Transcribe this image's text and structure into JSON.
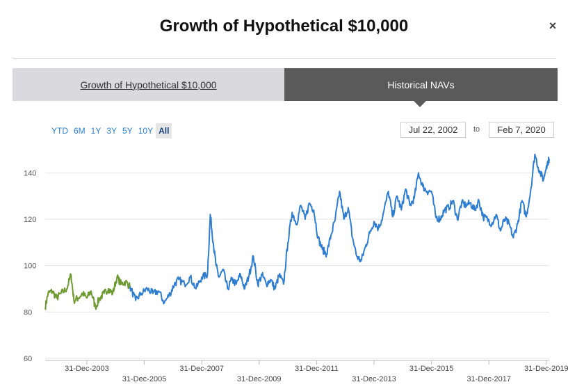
{
  "modal": {
    "title": "Growth of Hypothetical $10,000",
    "close_label": "×"
  },
  "tabs": [
    {
      "label": "Growth of Hypothetical $10,000"
    },
    {
      "label": "Historical NAVs"
    }
  ],
  "ranges": [
    "YTD",
    "6M",
    "1Y",
    "3Y",
    "5Y",
    "10Y",
    "All"
  ],
  "active_range": "All",
  "date_range": {
    "from": "Jul 22, 2002",
    "separator": "to",
    "to": "Feb 7, 2020"
  },
  "colors": {
    "accent": "#2a7fd4",
    "series_green": "#6e9a32",
    "series_blue": "#2e7dd1",
    "tab_dark": "#5a5a5a"
  },
  "chart_data": {
    "type": "line",
    "title": "",
    "xlabel": "",
    "ylabel": "",
    "ylim": [
      60,
      150
    ],
    "xlim": [
      2002.55,
      2020.1
    ],
    "yticks": [
      60,
      80,
      100,
      120,
      140
    ],
    "xtick_labels": [
      {
        "label": "31-Dec-2003",
        "x": 2004.0,
        "row": 1
      },
      {
        "label": "31-Dec-2005",
        "x": 2006.0,
        "row": 2
      },
      {
        "label": "31-Dec-2007",
        "x": 2008.0,
        "row": 1
      },
      {
        "label": "31-Dec-2009",
        "x": 2010.0,
        "row": 2
      },
      {
        "label": "31-Dec-2011",
        "x": 2012.0,
        "row": 1
      },
      {
        "label": "31-Dec-2013",
        "x": 2014.0,
        "row": 2
      },
      {
        "label": "31-Dec-2015",
        "x": 2016.0,
        "row": 1
      },
      {
        "label": "31-Dec-2017",
        "x": 2018.0,
        "row": 2
      },
      {
        "label": "31-Dec-2019",
        "x": 2020.0,
        "row": 1
      }
    ],
    "series": [
      {
        "name": "highlighted-period",
        "color": "#6e9a32",
        "x": [
          2002.55,
          2002.65,
          2002.8,
          2002.95,
          2003.1,
          2003.3,
          2003.45,
          2003.55,
          2003.7,
          2003.85,
          2004.0,
          2004.15,
          2004.3,
          2004.45,
          2004.6,
          2004.75,
          2004.9,
          2005.05,
          2005.2,
          2005.35,
          2005.5
        ],
        "values": [
          82,
          88,
          89,
          86,
          88,
          90,
          96,
          85,
          86,
          88,
          86,
          89,
          82,
          86,
          88,
          90,
          88,
          95,
          92,
          93,
          91
        ]
      },
      {
        "name": "nav",
        "color": "#2e7dd1",
        "x": [
          2005.5,
          2005.7,
          2005.9,
          2006.1,
          2006.3,
          2006.5,
          2006.7,
          2006.9,
          2007.05,
          2007.2,
          2007.4,
          2007.6,
          2007.8,
          2008.0,
          2008.2,
          2008.3,
          2008.4,
          2008.5,
          2008.6,
          2008.75,
          2008.9,
          2009.05,
          2009.2,
          2009.35,
          2009.5,
          2009.65,
          2009.8,
          2009.95,
          2010.1,
          2010.25,
          2010.4,
          2010.55,
          2010.7,
          2010.85,
          2011.0,
          2011.15,
          2011.3,
          2011.45,
          2011.6,
          2011.75,
          2011.9,
          2012.05,
          2012.2,
          2012.35,
          2012.5,
          2012.65,
          2012.8,
          2012.95,
          2013.1,
          2013.25,
          2013.4,
          2013.55,
          2013.7,
          2013.85,
          2014.0,
          2014.15,
          2014.3,
          2014.5,
          2014.65,
          2014.8,
          2014.95,
          2015.1,
          2015.25,
          2015.4,
          2015.55,
          2015.7,
          2015.85,
          2016.0,
          2016.15,
          2016.3,
          2016.45,
          2016.6,
          2016.75,
          2016.9,
          2017.05,
          2017.2,
          2017.35,
          2017.5,
          2017.65,
          2017.8,
          2017.95,
          2018.1,
          2018.25,
          2018.4,
          2018.55,
          2018.7,
          2018.85,
          2019.0,
          2019.15,
          2019.3,
          2019.45,
          2019.6,
          2019.75,
          2019.9,
          2020.0,
          2020.1
        ],
        "values": [
          91,
          85,
          88,
          90,
          88,
          89,
          84,
          88,
          92,
          94,
          92,
          95,
          90,
          95,
          96,
          122,
          110,
          100,
          95,
          98,
          90,
          94,
          92,
          96,
          90,
          96,
          104,
          92,
          96,
          92,
          94,
          90,
          96,
          92,
          110,
          123,
          118,
          126,
          120,
          127,
          124,
          112,
          107,
          105,
          113,
          120,
          132,
          120,
          125,
          112,
          104,
          102,
          108,
          114,
          119,
          116,
          121,
          132,
          121,
          130,
          124,
          133,
          126,
          129,
          140,
          134,
          132,
          132,
          121,
          120,
          124,
          125,
          128,
          120,
          127,
          126,
          127,
          124,
          128,
          121,
          120,
          118,
          122,
          115,
          120,
          118,
          112,
          118,
          128,
          121,
          132,
          148,
          141,
          137,
          143,
          146
        ]
      }
    ]
  }
}
